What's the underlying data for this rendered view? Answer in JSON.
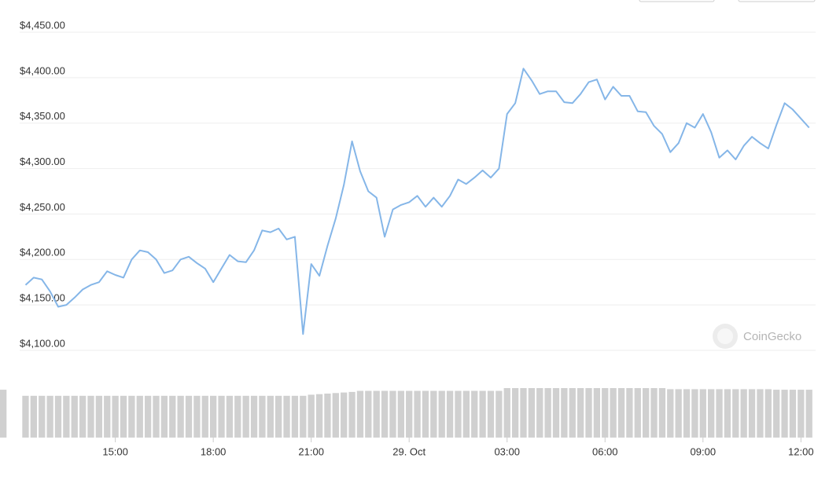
{
  "chart_data": {
    "type": "line",
    "x": [
      12.25,
      12.5,
      12.75,
      13,
      13.25,
      13.5,
      13.75,
      14,
      14.25,
      14.5,
      14.75,
      15,
      15.25,
      15.5,
      15.75,
      16,
      16.25,
      16.5,
      16.75,
      17,
      17.25,
      17.5,
      17.75,
      18,
      18.25,
      18.5,
      18.75,
      19,
      19.25,
      19.5,
      19.75,
      20,
      20.25,
      20.5,
      20.75,
      21,
      21.25,
      21.5,
      21.75,
      22,
      22.25,
      22.5,
      22.75,
      23,
      23.25,
      23.5,
      23.75,
      24,
      24.25,
      24.5,
      24.75,
      25,
      25.25,
      25.5,
      25.75,
      26,
      26.25,
      26.5,
      26.75,
      27,
      27.25,
      27.5,
      27.75,
      28,
      28.25,
      28.5,
      28.75,
      29,
      29.25,
      29.5,
      29.75,
      30,
      30.25,
      30.5,
      30.75,
      31,
      31.25,
      31.5,
      31.75,
      32,
      32.25,
      32.5,
      32.75,
      33,
      33.25,
      33.5,
      33.75,
      34,
      34.25,
      34.5,
      34.75,
      35,
      35.25,
      35.5,
      35.75,
      36,
      36.25
    ],
    "values": [
      4172,
      4180,
      4178,
      4165,
      4148,
      4150,
      4158,
      4167,
      4172,
      4175,
      4187,
      4183,
      4180,
      4200,
      4210,
      4208,
      4200,
      4185,
      4188,
      4200,
      4203,
      4196,
      4190,
      4175,
      4190,
      4205,
      4198,
      4197,
      4210,
      4232,
      4230,
      4234,
      4222,
      4225,
      4118,
      4195,
      4182,
      4215,
      4245,
      4282,
      4330,
      4297,
      4275,
      4268,
      4225,
      4255,
      4260,
      4263,
      4270,
      4258,
      4268,
      4258,
      4270,
      4288,
      4283,
      4290,
      4298,
      4290,
      4300,
      4360,
      4372,
      4410,
      4397,
      4382,
      4385,
      4385,
      4373,
      4372,
      4382,
      4395,
      4398,
      4376,
      4390,
      4380,
      4380,
      4363,
      4362,
      4347,
      4338,
      4318,
      4328,
      4350,
      4345,
      4360,
      4340,
      4312,
      4320,
      4310,
      4325,
      4335,
      4328,
      4322,
      4348,
      4372,
      4365,
      4355,
      4345
    ],
    "color": "#85b6e8",
    "volume": {
      "axis": "y2",
      "color": "#d0d0d0",
      "values": [
        76,
        76,
        76,
        76,
        76,
        76,
        76,
        76,
        76,
        76,
        76,
        76,
        76,
        76,
        76,
        76,
        76,
        76,
        76,
        76,
        76,
        76,
        76,
        76,
        76,
        76,
        76,
        76,
        76,
        76,
        76,
        76,
        76,
        76,
        76,
        78,
        79,
        80,
        81,
        82,
        83,
        85,
        85,
        85,
        85,
        85,
        85,
        85,
        85,
        85,
        85,
        85,
        85,
        85,
        85,
        85,
        85,
        85,
        85,
        90,
        90,
        90,
        90,
        90,
        90,
        90,
        90,
        90,
        90,
        90,
        90,
        90,
        90,
        90,
        90,
        90,
        90,
        90,
        90,
        88,
        88,
        88,
        88,
        88,
        88,
        88,
        88,
        88,
        88,
        88,
        88,
        88,
        87,
        87,
        87,
        87,
        87,
        87
      ]
    },
    "xlim": [
      12.07,
      36.45
    ],
    "xticks": [
      {
        "value": 15,
        "label": "15:00"
      },
      {
        "value": 18,
        "label": "18:00"
      },
      {
        "value": 21,
        "label": "21:00"
      },
      {
        "value": 24,
        "label": "29. Oct"
      },
      {
        "value": 27,
        "label": "03:00"
      },
      {
        "value": 30,
        "label": "06:00"
      },
      {
        "value": 33,
        "label": "09:00"
      },
      {
        "value": 36,
        "label": "12:00"
      }
    ],
    "ylim": [
      4100,
      4450
    ],
    "yticks": [
      {
        "value": 4100,
        "label": "$4,100.00"
      },
      {
        "value": 4150,
        "label": "$4,150.00"
      },
      {
        "value": 4200,
        "label": "$4,200.00"
      },
      {
        "value": 4250,
        "label": "$4,250.00"
      },
      {
        "value": 4300,
        "label": "$4,300.00"
      },
      {
        "value": 4350,
        "label": "$4,350.00"
      },
      {
        "value": 4400,
        "label": "$4,400.00"
      },
      {
        "value": 4450,
        "label": "$4,450.00"
      }
    ],
    "y2lim": [
      0,
      100
    ],
    "grid": true,
    "watermark": "CoinGecko"
  }
}
